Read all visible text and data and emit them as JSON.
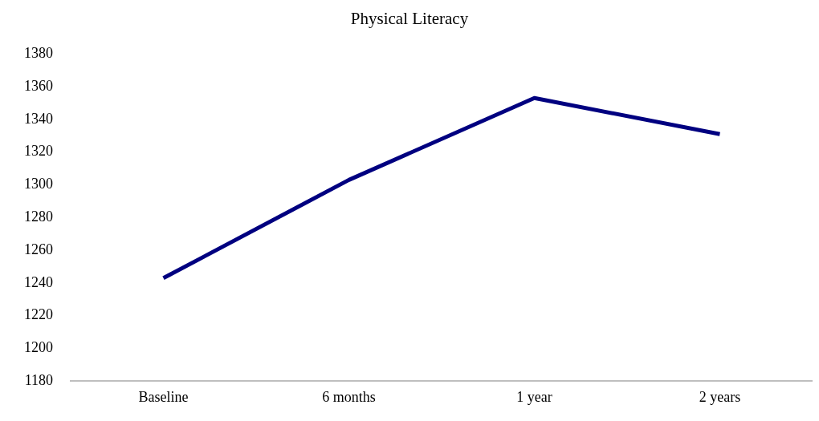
{
  "chart_data": {
    "type": "line",
    "title": "Physical Literacy",
    "categories": [
      "Baseline",
      "6 months",
      "1 year",
      "2 years"
    ],
    "series": [
      {
        "color": "#000080",
        "values": [
          1243,
          1303,
          1353,
          1331
        ]
      }
    ],
    "ylim": [
      1180,
      1380
    ],
    "yticks": [
      1180,
      1200,
      1220,
      1240,
      1260,
      1280,
      1300,
      1320,
      1340,
      1360,
      1380
    ],
    "grid": false,
    "legend": false,
    "marker": "none",
    "line_style": "solid"
  }
}
